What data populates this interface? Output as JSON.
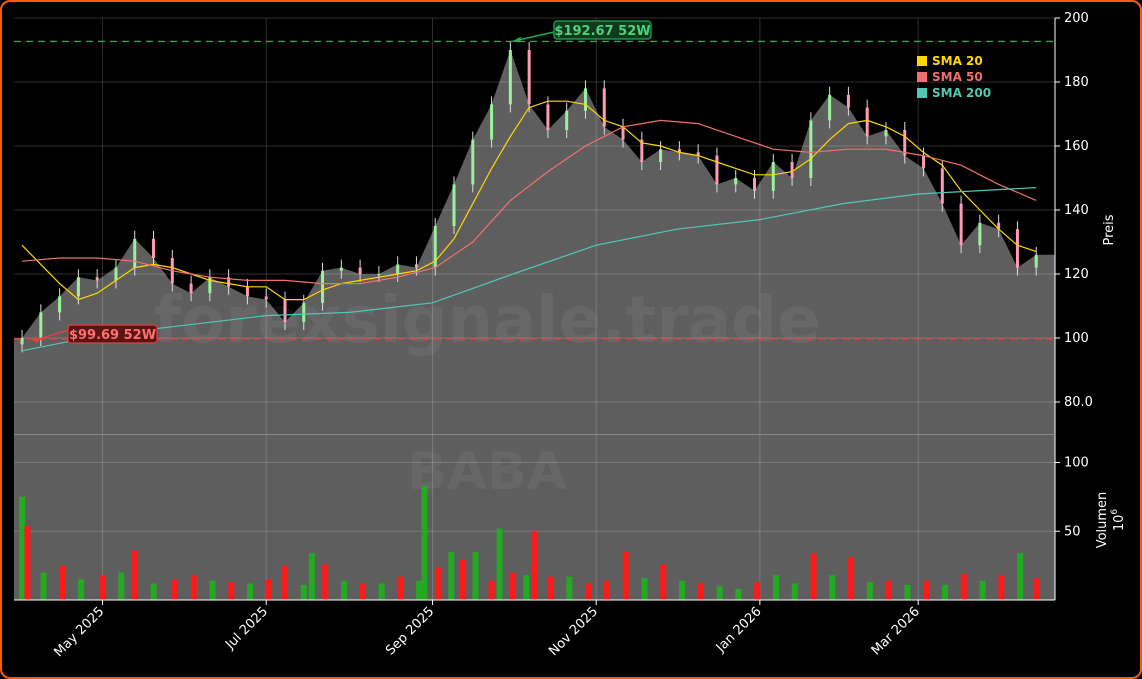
{
  "watermark": "forexsignale.trade",
  "symbol": "BABA",
  "colors": {
    "up": "#22aa22",
    "down": "#ff1a1a",
    "sma20": "#ffd700",
    "sma50": "#f07070",
    "sma200": "#50c8b4",
    "high_line": "#22aa55",
    "low_line": "#e04040",
    "frame": "#ff5a00"
  },
  "chart_data": [
    {
      "type": "line",
      "panel": "price",
      "ylabel": "Preis",
      "ylim": [
        70,
        200
      ],
      "yticks": [
        "80.0",
        "100",
        "120",
        "140",
        "160",
        "180",
        "200"
      ],
      "xlabels": [
        "May 2025",
        "Jul 2025",
        "Sep 2025",
        "Nov 2025",
        "Jan 2026",
        "Mar 2026"
      ],
      "xtick_dates": [
        "2025-05-01",
        "2025-07-01",
        "2025-09-01",
        "2025-11-01",
        "2026-01-01",
        "2026-03-01"
      ],
      "x_range": [
        "2025-03-29",
        "2026-04-21"
      ],
      "grid": true,
      "legend_position": "top-right",
      "legend": [
        "SMA 20",
        "SMA 50",
        "SMA 200"
      ],
      "annotations": [
        {
          "text": "$192.67 52W",
          "date": "2025-09-30",
          "value": 192.67
        },
        {
          "text": "$99.69 52W",
          "date": "2025-04-01",
          "value": 99.69
        }
      ],
      "series": [
        {
          "name": "Close",
          "x": [
            "2025-04-01",
            "2025-04-08",
            "2025-04-15",
            "2025-04-22",
            "2025-04-29",
            "2025-05-06",
            "2025-05-13",
            "2025-05-20",
            "2025-05-27",
            "2025-06-03",
            "2025-06-10",
            "2025-06-17",
            "2025-06-24",
            "2025-07-01",
            "2025-07-08",
            "2025-07-15",
            "2025-07-22",
            "2025-07-29",
            "2025-08-05",
            "2025-08-12",
            "2025-08-19",
            "2025-08-26",
            "2025-09-02",
            "2025-09-09",
            "2025-09-16",
            "2025-09-23",
            "2025-09-30",
            "2025-10-07",
            "2025-10-14",
            "2025-10-21",
            "2025-10-28",
            "2025-11-04",
            "2025-11-11",
            "2025-11-18",
            "2025-11-25",
            "2025-12-02",
            "2025-12-09",
            "2025-12-16",
            "2025-12-23",
            "2025-12-30",
            "2026-01-06",
            "2026-01-13",
            "2026-01-20",
            "2026-01-27",
            "2026-02-03",
            "2026-02-10",
            "2026-02-17",
            "2026-02-24",
            "2026-03-03",
            "2026-03-10",
            "2026-03-17",
            "2026-03-24",
            "2026-03-31",
            "2026-04-07",
            "2026-04-14"
          ],
          "values": [
            100,
            108,
            113,
            119,
            118,
            122,
            131,
            125,
            117,
            114,
            119,
            116,
            113,
            112,
            105,
            111,
            121,
            122,
            120,
            120,
            123,
            122,
            135,
            148,
            162,
            173,
            190,
            173,
            165,
            171,
            178,
            166,
            162,
            155,
            159,
            158,
            157,
            148,
            150,
            146,
            155,
            150,
            168,
            176,
            172,
            163,
            165,
            157,
            153,
            142,
            129,
            136,
            134,
            122,
            126
          ]
        },
        {
          "name": "SMA 20",
          "x": [
            "2025-04-01",
            "2025-04-08",
            "2025-04-15",
            "2025-04-22",
            "2025-04-29",
            "2025-05-06",
            "2025-05-13",
            "2025-05-20",
            "2025-05-27",
            "2025-06-03",
            "2025-06-10",
            "2025-06-17",
            "2025-06-24",
            "2025-07-01",
            "2025-07-08",
            "2025-07-15",
            "2025-07-22",
            "2025-07-29",
            "2025-08-05",
            "2025-08-12",
            "2025-08-19",
            "2025-08-26",
            "2025-09-02",
            "2025-09-09",
            "2025-09-16",
            "2025-09-23",
            "2025-09-30",
            "2025-10-07",
            "2025-10-14",
            "2025-10-21",
            "2025-10-28",
            "2025-11-04",
            "2025-11-11",
            "2025-11-18",
            "2025-11-25",
            "2025-12-02",
            "2025-12-09",
            "2025-12-16",
            "2025-12-23",
            "2025-12-30",
            "2026-01-06",
            "2026-01-13",
            "2026-01-20",
            "2026-01-27",
            "2026-02-03",
            "2026-02-10",
            "2026-02-17",
            "2026-02-24",
            "2026-03-03",
            "2026-03-10",
            "2026-03-17",
            "2026-03-24",
            "2026-03-31",
            "2026-04-07",
            "2026-04-14"
          ],
          "values": [
            129,
            123,
            117,
            112,
            114,
            118,
            122,
            123,
            122,
            120,
            118,
            117,
            116,
            116,
            112,
            112,
            115,
            117,
            118,
            119,
            120,
            121,
            124,
            131,
            142,
            153,
            163,
            172,
            174,
            174,
            173,
            168,
            166,
            161,
            160,
            158,
            157,
            155,
            153,
            151,
            151,
            152,
            156,
            162,
            167,
            168,
            166,
            163,
            158,
            154,
            146,
            140,
            134,
            129,
            127
          ]
        },
        {
          "name": "SMA 50",
          "x": [
            "2025-04-01",
            "2025-04-15",
            "2025-04-29",
            "2025-05-13",
            "2025-05-27",
            "2025-06-10",
            "2025-06-24",
            "2025-07-08",
            "2025-07-22",
            "2025-08-05",
            "2025-08-19",
            "2025-09-02",
            "2025-09-16",
            "2025-09-30",
            "2025-10-14",
            "2025-10-28",
            "2025-11-11",
            "2025-11-25",
            "2025-12-09",
            "2025-12-23",
            "2026-01-06",
            "2026-01-20",
            "2026-02-03",
            "2026-02-17",
            "2026-03-03",
            "2026-03-17",
            "2026-03-31",
            "2026-04-14"
          ],
          "values": [
            124,
            125,
            125,
            124,
            121,
            119,
            118,
            118,
            117,
            117,
            119,
            122,
            130,
            143,
            152,
            160,
            166,
            168,
            167,
            163,
            159,
            158,
            159,
            159,
            157,
            154,
            148,
            143
          ]
        },
        {
          "name": "SMA 200",
          "x": [
            "2025-04-01",
            "2025-05-01",
            "2025-06-01",
            "2025-07-01",
            "2025-08-01",
            "2025-09-01",
            "2025-10-01",
            "2025-11-01",
            "2025-12-01",
            "2026-01-01",
            "2026-02-01",
            "2026-03-01",
            "2026-04-14"
          ],
          "values": [
            96,
            101,
            104,
            107,
            108,
            111,
            120,
            129,
            134,
            137,
            142,
            145,
            147
          ]
        }
      ]
    },
    {
      "type": "bar",
      "panel": "volume",
      "ylabel": "Volumen",
      "unit": "10^6",
      "ylim": [
        0,
        120
      ],
      "yticks": [
        "50",
        "100"
      ],
      "x": [
        "2025-04-01",
        "2025-04-03",
        "2025-04-09",
        "2025-04-16",
        "2025-04-23",
        "2025-05-01",
        "2025-05-08",
        "2025-05-13",
        "2025-05-20",
        "2025-05-28",
        "2025-06-04",
        "2025-06-11",
        "2025-06-18",
        "2025-06-25",
        "2025-07-02",
        "2025-07-08",
        "2025-07-15",
        "2025-07-18",
        "2025-07-23",
        "2025-07-30",
        "2025-08-06",
        "2025-08-13",
        "2025-08-20",
        "2025-08-27",
        "2025-08-29",
        "2025-09-03",
        "2025-09-08",
        "2025-09-12",
        "2025-09-17",
        "2025-09-23",
        "2025-09-26",
        "2025-10-01",
        "2025-10-06",
        "2025-10-09",
        "2025-10-15",
        "2025-10-22",
        "2025-10-29",
        "2025-11-05",
        "2025-11-12",
        "2025-11-19",
        "2025-11-26",
        "2025-12-03",
        "2025-12-10",
        "2025-12-17",
        "2025-12-24",
        "2025-12-31",
        "2026-01-07",
        "2026-01-14",
        "2026-01-21",
        "2026-01-28",
        "2026-02-04",
        "2026-02-11",
        "2026-02-18",
        "2026-02-25",
        "2026-03-04",
        "2026-03-11",
        "2026-03-18",
        "2026-03-25",
        "2026-04-01",
        "2026-04-08",
        "2026-04-14"
      ],
      "values": [
        75,
        54,
        20,
        25,
        15,
        18,
        20,
        36,
        12,
        15,
        18,
        14,
        13,
        12,
        15,
        25,
        11,
        34,
        26,
        14,
        12,
        12,
        17,
        14,
        83,
        24,
        35,
        29,
        35,
        14,
        52,
        20,
        18,
        50,
        17,
        17,
        12,
        14,
        35,
        16,
        26,
        14,
        12,
        10,
        8,
        13,
        18,
        12,
        34,
        18,
        31,
        13,
        14,
        11,
        14,
        11,
        19,
        14,
        18,
        34,
        16
      ],
      "up": [
        true,
        false,
        true,
        false,
        true,
        false,
        true,
        false,
        true,
        false,
        false,
        true,
        false,
        true,
        false,
        false,
        true,
        true,
        false,
        true,
        false,
        true,
        false,
        true,
        true,
        false,
        true,
        false,
        true,
        false,
        true,
        false,
        true,
        false,
        false,
        true,
        false,
        false,
        false,
        true,
        false,
        true,
        false,
        true,
        true,
        false,
        true,
        true,
        false,
        true,
        false,
        true,
        false,
        true,
        false,
        true,
        false,
        true,
        false,
        true,
        false
      ]
    }
  ]
}
